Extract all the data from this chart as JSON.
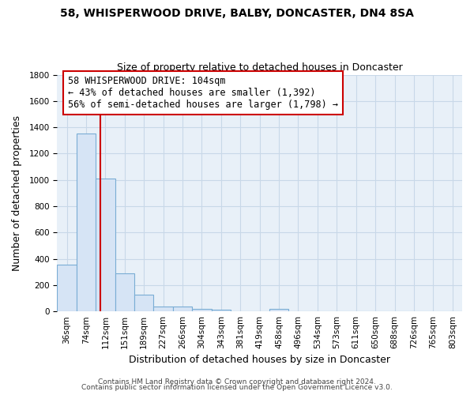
{
  "title1": "58, WHISPERWOOD DRIVE, BALBY, DONCASTER, DN4 8SA",
  "title2": "Size of property relative to detached houses in Doncaster",
  "xlabel": "Distribution of detached houses by size in Doncaster",
  "ylabel": "Number of detached properties",
  "bar_labels": [
    "36sqm",
    "74sqm",
    "112sqm",
    "151sqm",
    "189sqm",
    "227sqm",
    "266sqm",
    "304sqm",
    "343sqm",
    "381sqm",
    "419sqm",
    "458sqm",
    "496sqm",
    "534sqm",
    "573sqm",
    "611sqm",
    "650sqm",
    "688sqm",
    "726sqm",
    "765sqm",
    "803sqm"
  ],
  "bar_values": [
    355,
    1350,
    1010,
    290,
    130,
    40,
    35,
    20,
    15,
    0,
    0,
    20,
    0,
    0,
    0,
    0,
    0,
    0,
    0,
    0,
    0
  ],
  "bar_facecolor": "#d6e4f5",
  "bar_edgecolor": "#7aadd4",
  "vline_color": "#cc0000",
  "vline_x_idx": 1.72,
  "annotation_line1": "58 WHISPERWOOD DRIVE: 104sqm",
  "annotation_line2": "← 43% of detached houses are smaller (1,392)",
  "annotation_line3": "56% of semi-detached houses are larger (1,798) →",
  "annotation_box_color": "#ffffff",
  "annotation_box_edge": "#cc0000",
  "ylim": [
    0,
    1800
  ],
  "yticks": [
    0,
    200,
    400,
    600,
    800,
    1000,
    1200,
    1400,
    1600,
    1800
  ],
  "axes_bg": "#e8f0f8",
  "footer1": "Contains HM Land Registry data © Crown copyright and database right 2024.",
  "footer2": "Contains public sector information licensed under the Open Government Licence v3.0.",
  "background_color": "#ffffff",
  "grid_color": "#c8d8e8",
  "title1_fontsize": 10,
  "title2_fontsize": 9,
  "axis_label_fontsize": 9,
  "tick_fontsize": 7.5,
  "annotation_fontsize": 8.5,
  "footer_fontsize": 6.5
}
